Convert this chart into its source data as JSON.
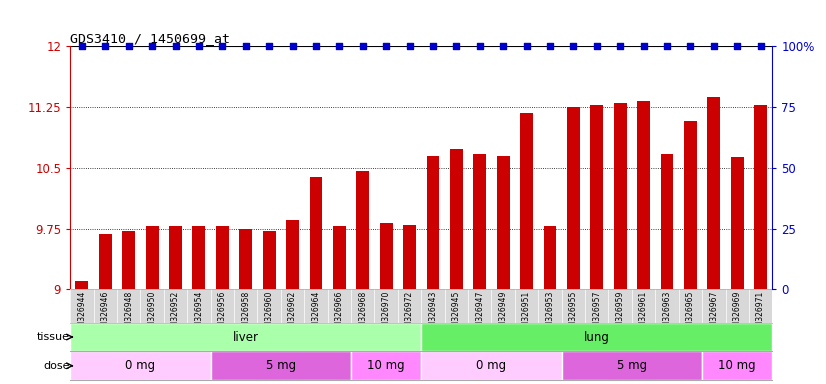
{
  "title": "GDS3410 / 1450699_at",
  "samples": [
    "GSM326944",
    "GSM326946",
    "GSM326948",
    "GSM326950",
    "GSM326952",
    "GSM326954",
    "GSM326956",
    "GSM326958",
    "GSM326960",
    "GSM326962",
    "GSM326964",
    "GSM326966",
    "GSM326968",
    "GSM326970",
    "GSM326972",
    "GSM326943",
    "GSM326945",
    "GSM326947",
    "GSM326949",
    "GSM326951",
    "GSM326953",
    "GSM326955",
    "GSM326957",
    "GSM326959",
    "GSM326961",
    "GSM326963",
    "GSM326965",
    "GSM326967",
    "GSM326969",
    "GSM326971"
  ],
  "bar_values": [
    9.1,
    9.68,
    9.72,
    9.78,
    9.78,
    9.78,
    9.78,
    9.75,
    9.72,
    9.85,
    10.38,
    9.78,
    10.46,
    9.82,
    9.79,
    10.65,
    10.73,
    10.67,
    10.65,
    11.18,
    9.78,
    11.25,
    11.27,
    11.3,
    11.32,
    10.67,
    11.08,
    11.37,
    10.63,
    11.27
  ],
  "bar_color": "#cc0000",
  "percentile_color": "#0000cc",
  "ylim": [
    9.0,
    12.0
  ],
  "yticks": [
    9.0,
    9.75,
    10.5,
    11.25,
    12.0
  ],
  "ytick_labels": [
    "9",
    "9.75",
    "10.5",
    "11.25",
    "12"
  ],
  "right_yticks": [
    0,
    25,
    50,
    75,
    100
  ],
  "right_ytick_labels": [
    "0",
    "25",
    "50",
    "75",
    "100%"
  ],
  "right_ylim": [
    0,
    100
  ],
  "tissue_groups": [
    {
      "label": "liver",
      "start": 0,
      "end": 15,
      "color": "#aaffaa"
    },
    {
      "label": "lung",
      "start": 15,
      "end": 30,
      "color": "#66ee66"
    }
  ],
  "dose_groups": [
    {
      "label": "0 mg",
      "start": 0,
      "end": 6,
      "color": "#ffccff"
    },
    {
      "label": "5 mg",
      "start": 6,
      "end": 12,
      "color": "#dd66dd"
    },
    {
      "label": "10 mg",
      "start": 12,
      "end": 15,
      "color": "#ff88ff"
    },
    {
      "label": "0 mg",
      "start": 15,
      "end": 21,
      "color": "#ffccff"
    },
    {
      "label": "5 mg",
      "start": 21,
      "end": 27,
      "color": "#dd66dd"
    },
    {
      "label": "10 mg",
      "start": 27,
      "end": 30,
      "color": "#ff88ff"
    }
  ],
  "xtick_bg": "#d8d8d8",
  "plot_bg": "#ffffff"
}
